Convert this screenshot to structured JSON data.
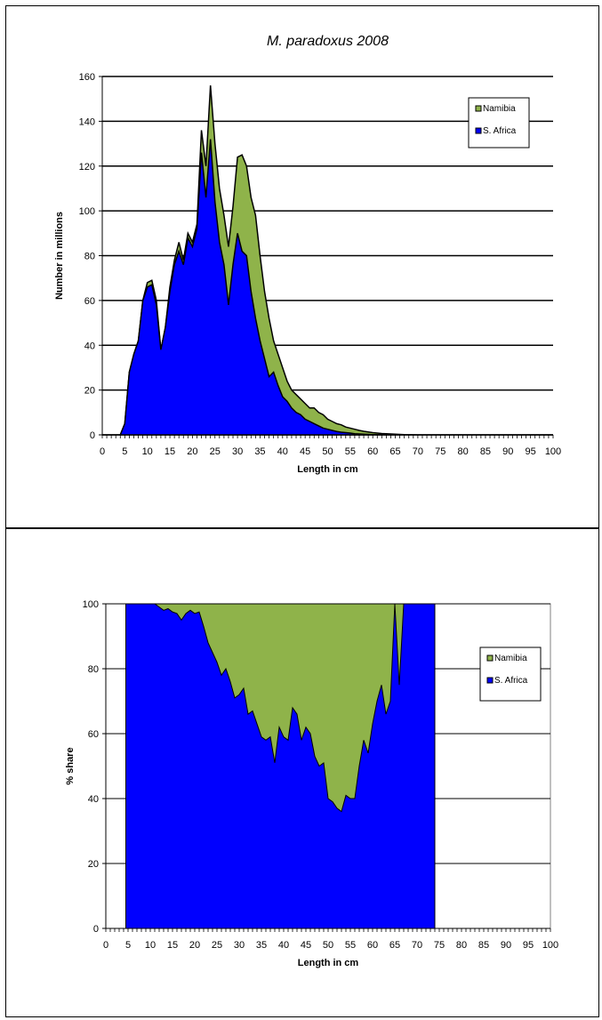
{
  "chart_data": [
    {
      "type": "area",
      "stacked": true,
      "title": "M. paradoxus 2008",
      "xlabel": "Length in cm",
      "ylabel": "Number in millions",
      "xlim": [
        0,
        100
      ],
      "ylim": [
        0,
        160
      ],
      "xticks": [
        0,
        5,
        10,
        15,
        20,
        25,
        30,
        35,
        40,
        45,
        50,
        55,
        60,
        65,
        70,
        75,
        80,
        85,
        90,
        95,
        100
      ],
      "yticks": [
        0,
        20,
        40,
        60,
        80,
        100,
        120,
        140,
        160
      ],
      "grid": true,
      "legend": "top-right",
      "series": [
        {
          "name": "S. Africa",
          "color": "#0000ff",
          "points": [
            [
              0,
              0
            ],
            [
              4,
              0
            ],
            [
              5,
              5
            ],
            [
              6,
              28
            ],
            [
              7,
              36
            ],
            [
              8,
              42
            ],
            [
              9,
              60
            ],
            [
              10,
              66
            ],
            [
              11,
              67
            ],
            [
              12,
              58
            ],
            [
              13,
              38
            ],
            [
              14,
              48
            ],
            [
              15,
              64
            ],
            [
              16,
              76
            ],
            [
              17,
              82
            ],
            [
              18,
              76
            ],
            [
              19,
              88
            ],
            [
              20,
              84
            ],
            [
              21,
              92
            ],
            [
              22,
              126
            ],
            [
              23,
              106
            ],
            [
              24,
              132
            ],
            [
              25,
              104
            ],
            [
              26,
              86
            ],
            [
              27,
              76
            ],
            [
              28,
              58
            ],
            [
              29,
              76
            ],
            [
              30,
              90
            ],
            [
              31,
              82
            ],
            [
              32,
              80
            ],
            [
              33,
              64
            ],
            [
              34,
              52
            ],
            [
              35,
              42
            ],
            [
              36,
              34
            ],
            [
              37,
              26
            ],
            [
              38,
              28
            ],
            [
              39,
              22
            ],
            [
              40,
              17
            ],
            [
              41,
              15
            ],
            [
              42,
              12
            ],
            [
              43,
              10
            ],
            [
              44,
              9
            ],
            [
              45,
              7
            ],
            [
              46,
              6
            ],
            [
              47,
              5
            ],
            [
              48,
              4
            ],
            [
              49,
              3
            ],
            [
              50,
              2.5
            ],
            [
              51,
              2
            ],
            [
              52,
              1.5
            ],
            [
              53,
              1.2
            ],
            [
              54,
              1
            ],
            [
              55,
              0.8
            ],
            [
              56,
              0.5
            ],
            [
              57,
              0.4
            ],
            [
              58,
              0.3
            ],
            [
              59,
              0.2
            ],
            [
              60,
              0.1
            ],
            [
              65,
              0
            ],
            [
              100,
              0
            ]
          ]
        },
        {
          "name": "Namibia",
          "color": "#8fb34a",
          "points": [
            [
              0,
              0
            ],
            [
              4,
              0
            ],
            [
              5,
              5
            ],
            [
              6,
              28
            ],
            [
              7,
              36
            ],
            [
              8,
              42
            ],
            [
              9,
              60
            ],
            [
              10,
              68
            ],
            [
              11,
              69
            ],
            [
              12,
              60
            ],
            [
              13,
              38
            ],
            [
              14,
              48
            ],
            [
              15,
              66
            ],
            [
              16,
              78
            ],
            [
              17,
              86
            ],
            [
              18,
              78
            ],
            [
              19,
              90
            ],
            [
              20,
              86
            ],
            [
              21,
              94
            ],
            [
              22,
              136
            ],
            [
              23,
              120
            ],
            [
              24,
              156
            ],
            [
              25,
              130
            ],
            [
              26,
              110
            ],
            [
              27,
              98
            ],
            [
              28,
              84
            ],
            [
              29,
              102
            ],
            [
              30,
              124
            ],
            [
              31,
              125
            ],
            [
              32,
              120
            ],
            [
              33,
              106
            ],
            [
              34,
              98
            ],
            [
              35,
              80
            ],
            [
              36,
              64
            ],
            [
              37,
              52
            ],
            [
              38,
              42
            ],
            [
              39,
              36
            ],
            [
              40,
              30
            ],
            [
              41,
              24
            ],
            [
              42,
              20
            ],
            [
              43,
              18
            ],
            [
              44,
              16
            ],
            [
              45,
              14
            ],
            [
              46,
              12
            ],
            [
              47,
              12
            ],
            [
              48,
              10
            ],
            [
              49,
              9
            ],
            [
              50,
              7
            ],
            [
              51,
              6
            ],
            [
              52,
              5
            ],
            [
              53,
              4.5
            ],
            [
              54,
              3.5
            ],
            [
              55,
              3
            ],
            [
              56,
              2.5
            ],
            [
              57,
              2
            ],
            [
              58,
              1.6
            ],
            [
              59,
              1.3
            ],
            [
              60,
              1
            ],
            [
              61,
              0.8
            ],
            [
              62,
              0.6
            ],
            [
              63,
              0.5
            ],
            [
              64,
              0.4
            ],
            [
              65,
              0.3
            ],
            [
              66,
              0.2
            ],
            [
              67,
              0.1
            ],
            [
              70,
              0
            ],
            [
              100,
              0
            ]
          ]
        }
      ]
    },
    {
      "type": "area",
      "stacked": true,
      "title": "",
      "xlabel": "Length in cm",
      "ylabel": "% share",
      "xlim": [
        0,
        100
      ],
      "ylim": [
        0,
        100
      ],
      "xticks": [
        0,
        5,
        10,
        15,
        20,
        25,
        30,
        35,
        40,
        45,
        50,
        55,
        60,
        65,
        70,
        75,
        80,
        85,
        90,
        95,
        100
      ],
      "yticks": [
        0,
        20,
        40,
        60,
        80,
        100
      ],
      "grid": true,
      "legend": "top-right",
      "x_start": 4.5,
      "x_end": 74,
      "series": [
        {
          "name": "S. Africa",
          "color": "#0000ff",
          "points": [
            [
              4.5,
              100
            ],
            [
              10,
              100
            ],
            [
              11,
              100
            ],
            [
              12,
              99
            ],
            [
              13,
              98
            ],
            [
              14,
              98.5
            ],
            [
              15,
              97.5
            ],
            [
              16,
              97
            ],
            [
              17,
              95
            ],
            [
              18,
              97
            ],
            [
              19,
              98
            ],
            [
              20,
              97
            ],
            [
              21,
              97.5
            ],
            [
              22,
              93
            ],
            [
              23,
              88
            ],
            [
              24,
              85
            ],
            [
              25,
              82
            ],
            [
              26,
              78
            ],
            [
              27,
              80
            ],
            [
              28,
              76
            ],
            [
              29,
              71
            ],
            [
              30,
              72
            ],
            [
              31,
              74
            ],
            [
              32,
              66
            ],
            [
              33,
              67
            ],
            [
              34,
              63
            ],
            [
              35,
              59
            ],
            [
              36,
              58
            ],
            [
              37,
              59
            ],
            [
              38,
              51
            ],
            [
              39,
              62
            ],
            [
              40,
              59
            ],
            [
              41,
              58
            ],
            [
              42,
              68
            ],
            [
              43,
              66
            ],
            [
              44,
              58
            ],
            [
              45,
              62
            ],
            [
              46,
              60
            ],
            [
              47,
              53
            ],
            [
              48,
              50
            ],
            [
              49,
              51
            ],
            [
              50,
              40
            ],
            [
              51,
              39
            ],
            [
              52,
              37
            ],
            [
              53,
              36
            ],
            [
              54,
              41
            ],
            [
              55,
              40
            ],
            [
              56,
              40
            ],
            [
              57,
              50
            ],
            [
              58,
              58
            ],
            [
              59,
              54
            ],
            [
              60,
              63
            ],
            [
              61,
              70
            ],
            [
              62,
              75
            ],
            [
              63,
              66
            ],
            [
              64,
              70
            ],
            [
              65,
              100
            ],
            [
              66,
              75
            ],
            [
              67,
              100
            ],
            [
              74,
              100
            ]
          ]
        },
        {
          "name": "Namibia",
          "color": "#8fb34a",
          "points": [
            [
              4.5,
              100
            ],
            [
              74,
              100
            ]
          ]
        }
      ]
    }
  ]
}
